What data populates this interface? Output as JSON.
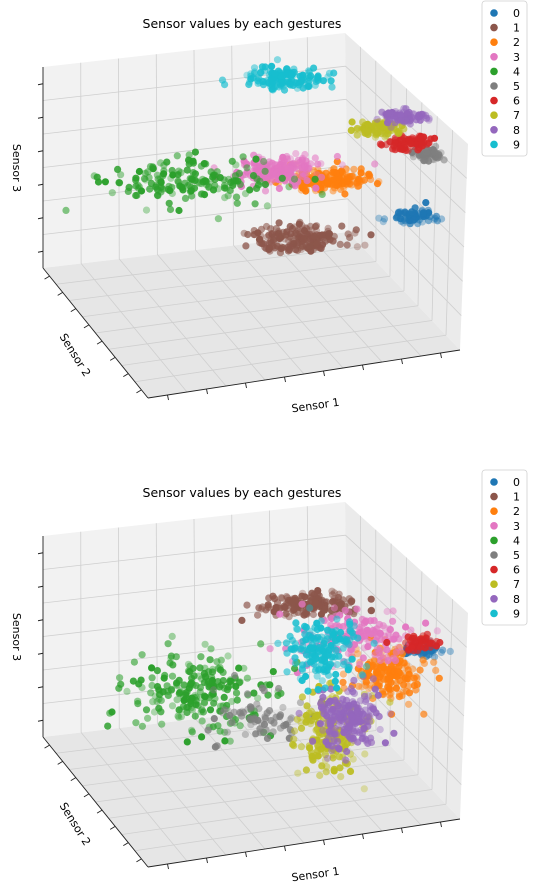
{
  "chart_data": [
    {
      "type": "scatter",
      "projection": "3d",
      "title": "Sensor values by each gestures",
      "xlabel": "Sensor 1",
      "ylabel": "Sensor 2",
      "zlabel": "Sensor 3",
      "grid": true,
      "legend_position": "top-right",
      "series": [
        {
          "name": "0",
          "color": "#1f77b4",
          "center": [
            0.86,
            0.55
          ],
          "spread": [
            0.025,
            0.012
          ],
          "count": 70
        },
        {
          "name": "1",
          "color": "#8c564b",
          "center": [
            0.58,
            0.62
          ],
          "spread": [
            0.06,
            0.022
          ],
          "count": 180
        },
        {
          "name": "2",
          "color": "#ff7f0e",
          "center": [
            0.64,
            0.44
          ],
          "spread": [
            0.055,
            0.018
          ],
          "count": 200
        },
        {
          "name": "3",
          "color": "#e377c2",
          "center": [
            0.53,
            0.41
          ],
          "spread": [
            0.05,
            0.022
          ],
          "count": 200
        },
        {
          "name": "4",
          "color": "#2ca02c",
          "center": [
            0.33,
            0.44
          ],
          "spread": [
            0.1,
            0.035
          ],
          "count": 170
        },
        {
          "name": "5",
          "color": "#7f7f7f",
          "center": [
            0.9,
            0.36
          ],
          "spread": [
            0.02,
            0.01
          ],
          "count": 60
        },
        {
          "name": "6",
          "color": "#d62728",
          "center": [
            0.85,
            0.32
          ],
          "spread": [
            0.03,
            0.012
          ],
          "count": 90
        },
        {
          "name": "7",
          "color": "#bcbd22",
          "center": [
            0.77,
            0.28
          ],
          "spread": [
            0.03,
            0.012
          ],
          "count": 90
        },
        {
          "name": "8",
          "color": "#9467bd",
          "center": [
            0.84,
            0.24
          ],
          "spread": [
            0.03,
            0.01
          ],
          "count": 90
        },
        {
          "name": "9",
          "color": "#17becf",
          "center": [
            0.55,
            0.12
          ],
          "spread": [
            0.05,
            0.018
          ],
          "count": 150
        }
      ]
    },
    {
      "type": "scatter",
      "projection": "3d",
      "title": "Sensor values by each gestures",
      "xlabel": "Sensor 1",
      "ylabel": "Sensor 2",
      "zlabel": "Sensor 3",
      "grid": true,
      "legend_position": "top-right",
      "series": [
        {
          "name": "0",
          "color": "#1f77b4",
          "center": [
            0.88,
            0.44
          ],
          "spread": [
            0.025,
            0.01
          ],
          "count": 60
        },
        {
          "name": "1",
          "color": "#8c564b",
          "center": [
            0.62,
            0.3
          ],
          "spread": [
            0.06,
            0.02
          ],
          "count": 170
        },
        {
          "name": "2",
          "color": "#ff7f0e",
          "center": [
            0.8,
            0.51
          ],
          "spread": [
            0.045,
            0.04
          ],
          "count": 170
        },
        {
          "name": "3",
          "color": "#e377c2",
          "center": [
            0.72,
            0.4
          ],
          "spread": [
            0.07,
            0.045
          ],
          "count": 160
        },
        {
          "name": "4",
          "color": "#2ca02c",
          "center": [
            0.35,
            0.57
          ],
          "spread": [
            0.09,
            0.06
          ],
          "count": 230
        },
        {
          "name": "5",
          "color": "#7f7f7f",
          "center": [
            0.5,
            0.65
          ],
          "spread": [
            0.07,
            0.05
          ],
          "count": 70
        },
        {
          "name": "6",
          "color": "#d62728",
          "center": [
            0.88,
            0.42
          ],
          "spread": [
            0.025,
            0.012
          ],
          "count": 50
        },
        {
          "name": "7",
          "color": "#bcbd22",
          "center": [
            0.66,
            0.7
          ],
          "spread": [
            0.04,
            0.07
          ],
          "count": 170
        },
        {
          "name": "8",
          "color": "#9467bd",
          "center": [
            0.7,
            0.65
          ],
          "spread": [
            0.04,
            0.05
          ],
          "count": 200
        },
        {
          "name": "9",
          "color": "#17becf",
          "center": [
            0.64,
            0.44
          ],
          "spread": [
            0.04,
            0.045
          ],
          "count": 170
        }
      ]
    }
  ]
}
